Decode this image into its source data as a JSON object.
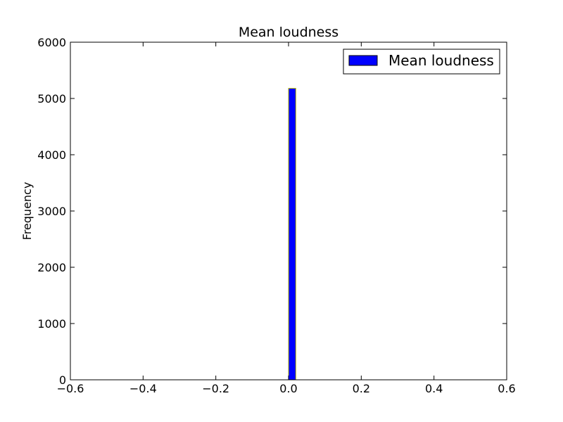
{
  "chart_data": {
    "type": "bar",
    "title": "Mean loudness",
    "xlabel": "",
    "ylabel": "Frequency",
    "xlim": [
      -0.6,
      0.6
    ],
    "ylim": [
      0,
      6000
    ],
    "x_ticks": [
      -0.6,
      -0.4,
      -0.2,
      0.0,
      0.2,
      0.4,
      0.6
    ],
    "x_tick_labels": [
      "−0.6",
      "−0.4",
      "−0.2",
      "0.0",
      "0.2",
      "0.4",
      "0.6"
    ],
    "y_ticks": [
      0,
      1000,
      2000,
      3000,
      4000,
      5000,
      6000
    ],
    "y_tick_labels": [
      "0",
      "1000",
      "2000",
      "3000",
      "4000",
      "5000",
      "6000"
    ],
    "bin_width": 0.02,
    "bins": [
      {
        "x0": 0.0,
        "x1": 0.02,
        "value": 5180
      }
    ],
    "series": [
      {
        "name": "Mean loudness",
        "color": "#0000ff",
        "edge_color": "#b8b800"
      }
    ],
    "legend": {
      "placement": "top-right"
    },
    "grid": false
  }
}
